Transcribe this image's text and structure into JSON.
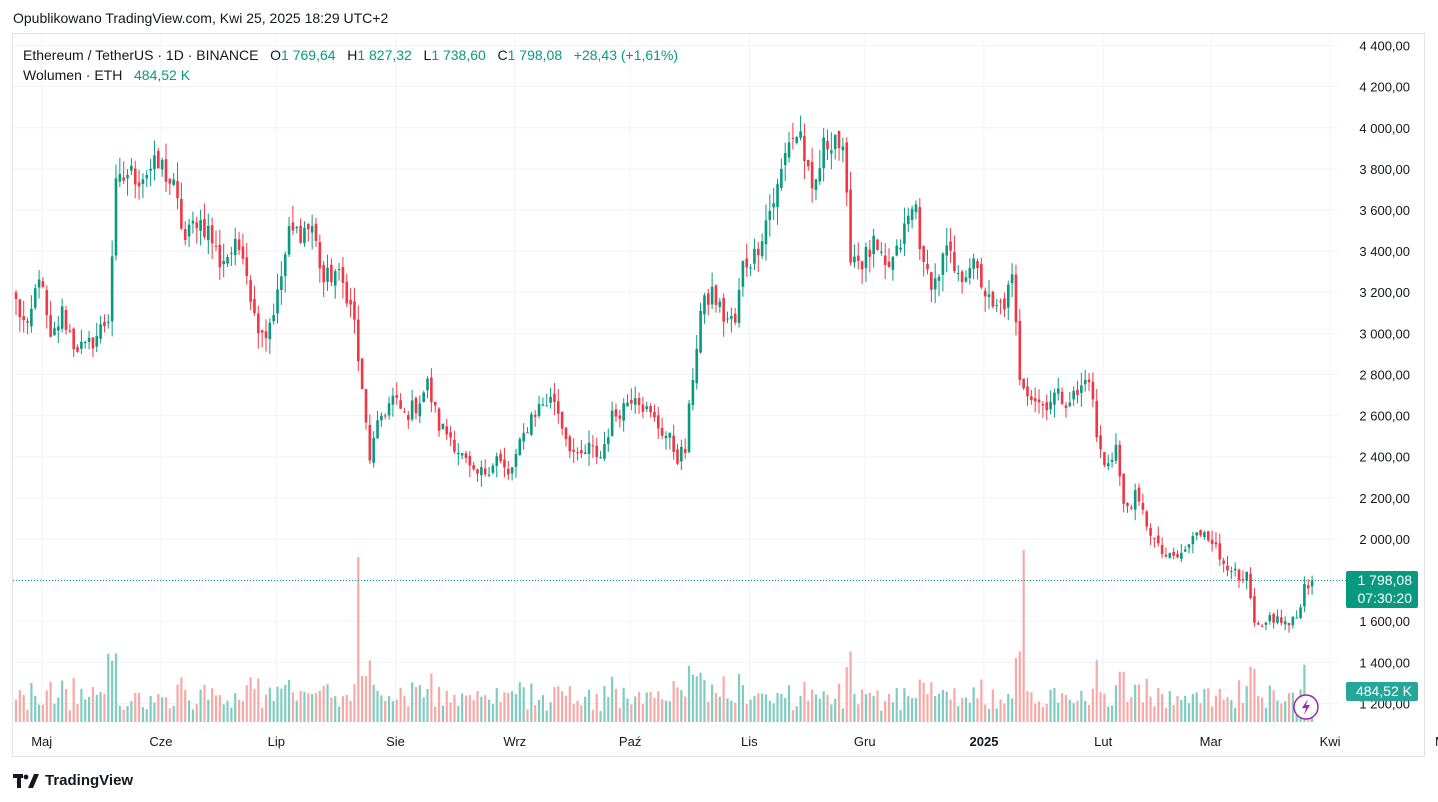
{
  "header": {
    "published": "Opublikowano TradingView.com, Kwi 25, 2025 18:29 UTC+2"
  },
  "legend": {
    "symbol": "Ethereum / TetherUS · 1D · BINANCE",
    "o_label": "O",
    "o_value": "1 769,64",
    "h_label": "H",
    "h_value": "1 827,32",
    "l_label": "L",
    "l_value": "1 738,60",
    "c_label": "C",
    "c_value": "1 798,08",
    "change": "+28,43 (+1,61%)",
    "volume_label": "Wolumen · ETH",
    "volume_value": "484,52 K"
  },
  "brand": {
    "name": "TradingView"
  },
  "colors": {
    "up": "#089981",
    "down": "#f23645",
    "up_vol": "#80ccc0",
    "down_vol": "#f7a9a7",
    "grid": "#f0f3fa"
  },
  "price_badge": {
    "price": "1 798,08",
    "countdown": "07:30:20"
  },
  "volume_badge": "484,52 K",
  "chart_data": {
    "type": "candlestick",
    "symbol": "ETHUSDT",
    "interval": "1D",
    "ylim": [
      1100,
      4460
    ],
    "y_ticks": [
      1200,
      1400,
      1600,
      1800,
      2000,
      2200,
      2400,
      2600,
      2800,
      3000,
      3200,
      3400,
      3600,
      3800,
      4000,
      4200,
      4400
    ],
    "y_tick_labels": [
      "1 200,00",
      "1 400,00",
      "1 600,00",
      "",
      "2 000,00",
      "2 200,00",
      "2 400,00",
      "2 600,00",
      "2 800,00",
      "3 000,00",
      "3 200,00",
      "3 400,00",
      "3 600,00",
      "3 800,00",
      "4 000,00",
      "4 200,00",
      "4 400,00"
    ],
    "x_labels": [
      "Maj",
      "Cze",
      "Lip",
      "Sie",
      "Wrz",
      "Paź",
      "Lis",
      "Gru",
      "2025",
      "Lut",
      "Mar",
      "Kwi",
      "Maj"
    ],
    "x_label_days": [
      2,
      33,
      63,
      94,
      125,
      155,
      186,
      216,
      247,
      278,
      306,
      337,
      367
    ],
    "last_close": 1798.08,
    "anchors": [
      [
        0,
        3150
      ],
      [
        3,
        3000
      ],
      [
        6,
        3300
      ],
      [
        9,
        2950
      ],
      [
        12,
        3100
      ],
      [
        15,
        2950
      ],
      [
        18,
        2920
      ],
      [
        21,
        2990
      ],
      [
        24,
        3080
      ],
      [
        26,
        3700
      ],
      [
        29,
        3780
      ],
      [
        32,
        3760
      ],
      [
        35,
        3800
      ],
      [
        38,
        3810
      ],
      [
        41,
        3700
      ],
      [
        44,
        3450
      ],
      [
        47,
        3560
      ],
      [
        50,
        3500
      ],
      [
        53,
        3350
      ],
      [
        56,
        3400
      ],
      [
        59,
        3420
      ],
      [
        62,
        3080
      ],
      [
        65,
        3000
      ],
      [
        68,
        3180
      ],
      [
        71,
        3480
      ],
      [
        74,
        3500
      ],
      [
        77,
        3520
      ],
      [
        80,
        3250
      ],
      [
        83,
        3300
      ],
      [
        86,
        3200
      ],
      [
        88,
        3050
      ],
      [
        90,
        2700
      ],
      [
        92,
        2400
      ],
      [
        95,
        2600
      ],
      [
        98,
        2680
      ],
      [
        101,
        2600
      ],
      [
        104,
        2650
      ],
      [
        107,
        2750
      ],
      [
        110,
        2550
      ],
      [
        113,
        2500
      ],
      [
        116,
        2400
      ],
      [
        119,
        2300
      ],
      [
        122,
        2330
      ],
      [
        125,
        2400
      ],
      [
        128,
        2300
      ],
      [
        131,
        2450
      ],
      [
        134,
        2600
      ],
      [
        137,
        2660
      ],
      [
        140,
        2680
      ],
      [
        143,
        2500
      ],
      [
        146,
        2380
      ],
      [
        149,
        2440
      ],
      [
        152,
        2400
      ],
      [
        155,
        2590
      ],
      [
        158,
        2650
      ],
      [
        161,
        2720
      ],
      [
        164,
        2620
      ],
      [
        167,
        2550
      ],
      [
        170,
        2480
      ],
      [
        172,
        2400
      ],
      [
        174,
        2430
      ],
      [
        176,
        2800
      ],
      [
        178,
        3100
      ],
      [
        181,
        3200
      ],
      [
        184,
        3080
      ],
      [
        187,
        3050
      ],
      [
        189,
        3330
      ],
      [
        192,
        3380
      ],
      [
        195,
        3550
      ],
      [
        198,
        3700
      ],
      [
        201,
        3950
      ],
      [
        204,
        3970
      ],
      [
        207,
        3650
      ],
      [
        210,
        3900
      ],
      [
        213,
        3980
      ],
      [
        215,
        3850
      ],
      [
        217,
        3400
      ],
      [
        220,
        3350
      ],
      [
        223,
        3420
      ],
      [
        226,
        3300
      ],
      [
        229,
        3380
      ],
      [
        232,
        3560
      ],
      [
        234,
        3620
      ],
      [
        236,
        3300
      ],
      [
        239,
        3250
      ],
      [
        242,
        3400
      ],
      [
        245,
        3250
      ],
      [
        248,
        3350
      ],
      [
        251,
        3250
      ],
      [
        254,
        3100
      ],
      [
        257,
        3150
      ],
      [
        259,
        3250
      ],
      [
        261,
        2800
      ],
      [
        264,
        2700
      ],
      [
        267,
        2650
      ],
      [
        270,
        2700
      ],
      [
        273,
        2680
      ],
      [
        276,
        2700
      ],
      [
        279,
        2800
      ],
      [
        281,
        2500
      ],
      [
        283,
        2350
      ],
      [
        286,
        2450
      ],
      [
        288,
        2150
      ],
      [
        291,
        2200
      ],
      [
        294,
        2080
      ],
      [
        297,
        1950
      ],
      [
        300,
        1900
      ],
      [
        303,
        1920
      ],
      [
        306,
        2000
      ],
      [
        309,
        2050
      ],
      [
        311,
        2000
      ],
      [
        313,
        1900
      ],
      [
        316,
        1870
      ],
      [
        318,
        1780
      ],
      [
        320,
        1810
      ],
      [
        322,
        1580
      ],
      [
        324,
        1550
      ],
      [
        326,
        1620
      ],
      [
        329,
        1600
      ],
      [
        331,
        1580
      ],
      [
        333,
        1620
      ],
      [
        335,
        1770
      ],
      [
        337,
        1798.08
      ]
    ]
  }
}
